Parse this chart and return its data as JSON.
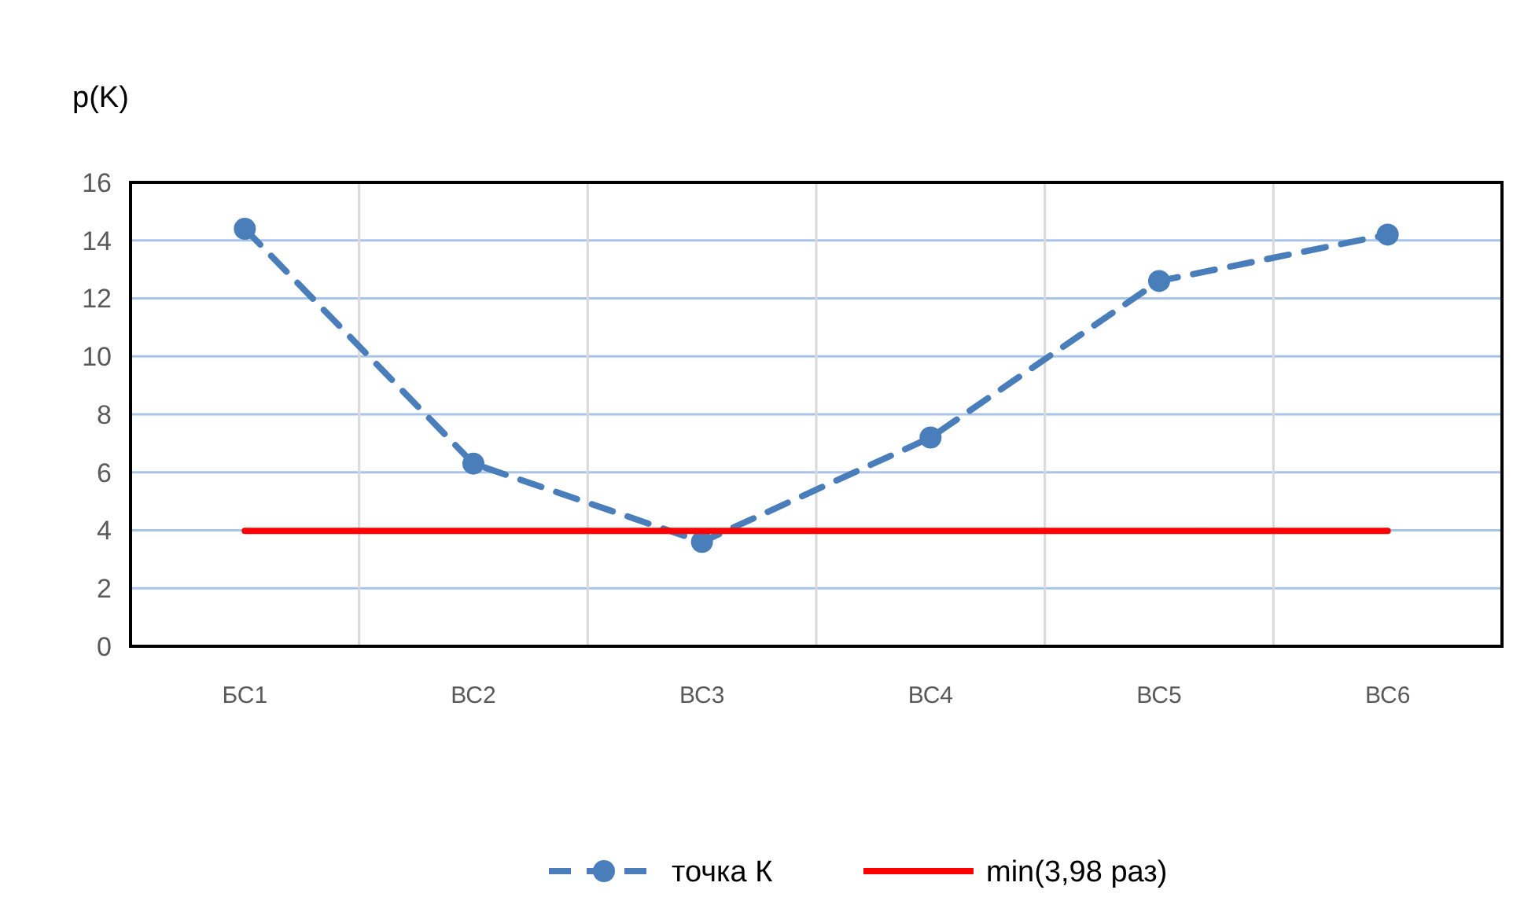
{
  "chart_data": {
    "type": "line",
    "ylabel": "p(K)",
    "categories": [
      "БС1",
      "ВС2",
      "ВС3",
      "ВС4",
      "ВС5",
      "ВС6"
    ],
    "series": [
      {
        "name": "точка К",
        "color": "#4a7ebb",
        "values": [
          14.4,
          6.3,
          3.6,
          7.2,
          12.6,
          14.2
        ],
        "marker": "circle",
        "line_style": "dashed"
      },
      {
        "name": "min(3,98 раз)",
        "color": "#ff0000",
        "values": [
          3.98,
          3.98,
          3.98,
          3.98,
          3.98,
          3.98
        ],
        "marker": "none",
        "line_style": "solid"
      }
    ],
    "ylim": [
      0,
      16
    ],
    "yticks": [
      0,
      2,
      4,
      6,
      8,
      10,
      12,
      14,
      16
    ],
    "grid": true,
    "legend": "bottom"
  }
}
